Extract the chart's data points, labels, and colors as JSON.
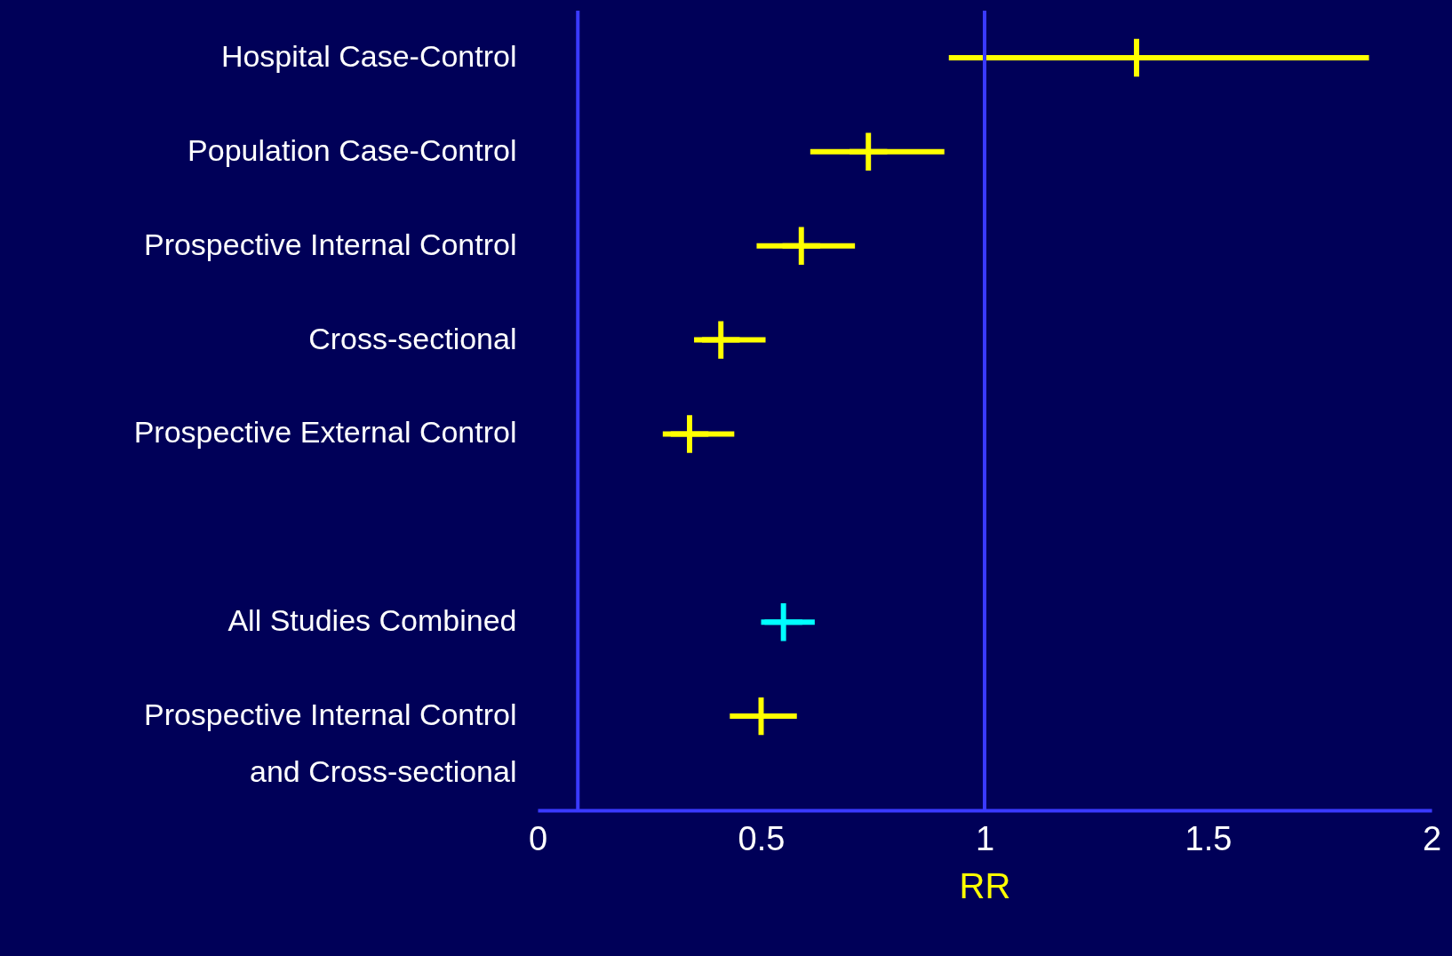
{
  "chart_data": {
    "type": "scatter",
    "orientation": "horizontal",
    "marker": "cross",
    "xlabel": "RR",
    "categories": [
      "Hospital Case-Control",
      "Population Case-Control",
      "Prospective Internal Control",
      "Cross-sectional",
      "Prospective External Control",
      null,
      "All Studies Combined",
      "Prospective Internal Control\nand Cross-sectional"
    ],
    "values": [
      1.34,
      0.74,
      0.59,
      0.41,
      0.34,
      null,
      0.55,
      0.5
    ],
    "errors": [
      [
        0.92,
        1.86
      ],
      [
        0.61,
        0.91
      ],
      [
        0.49,
        0.71
      ],
      [
        0.35,
        0.51
      ],
      [
        0.28,
        0.44
      ],
      null,
      [
        0.5,
        0.62
      ],
      [
        0.43,
        0.58
      ]
    ],
    "colors": [
      "#ffff00",
      "#ffff00",
      "#ffff00",
      "#ffff00",
      "#ffff00",
      null,
      "#00ffff",
      "#ffff00"
    ],
    "xlim": [
      0,
      2
    ],
    "xticks": [
      0,
      0.5,
      1,
      1.5,
      2
    ],
    "ref_lines": [
      {
        "axis": "x",
        "value": 0.09,
        "color": "#3a3aff"
      },
      {
        "axis": "x",
        "value": 1,
        "color": "#3a3aff"
      }
    ]
  }
}
